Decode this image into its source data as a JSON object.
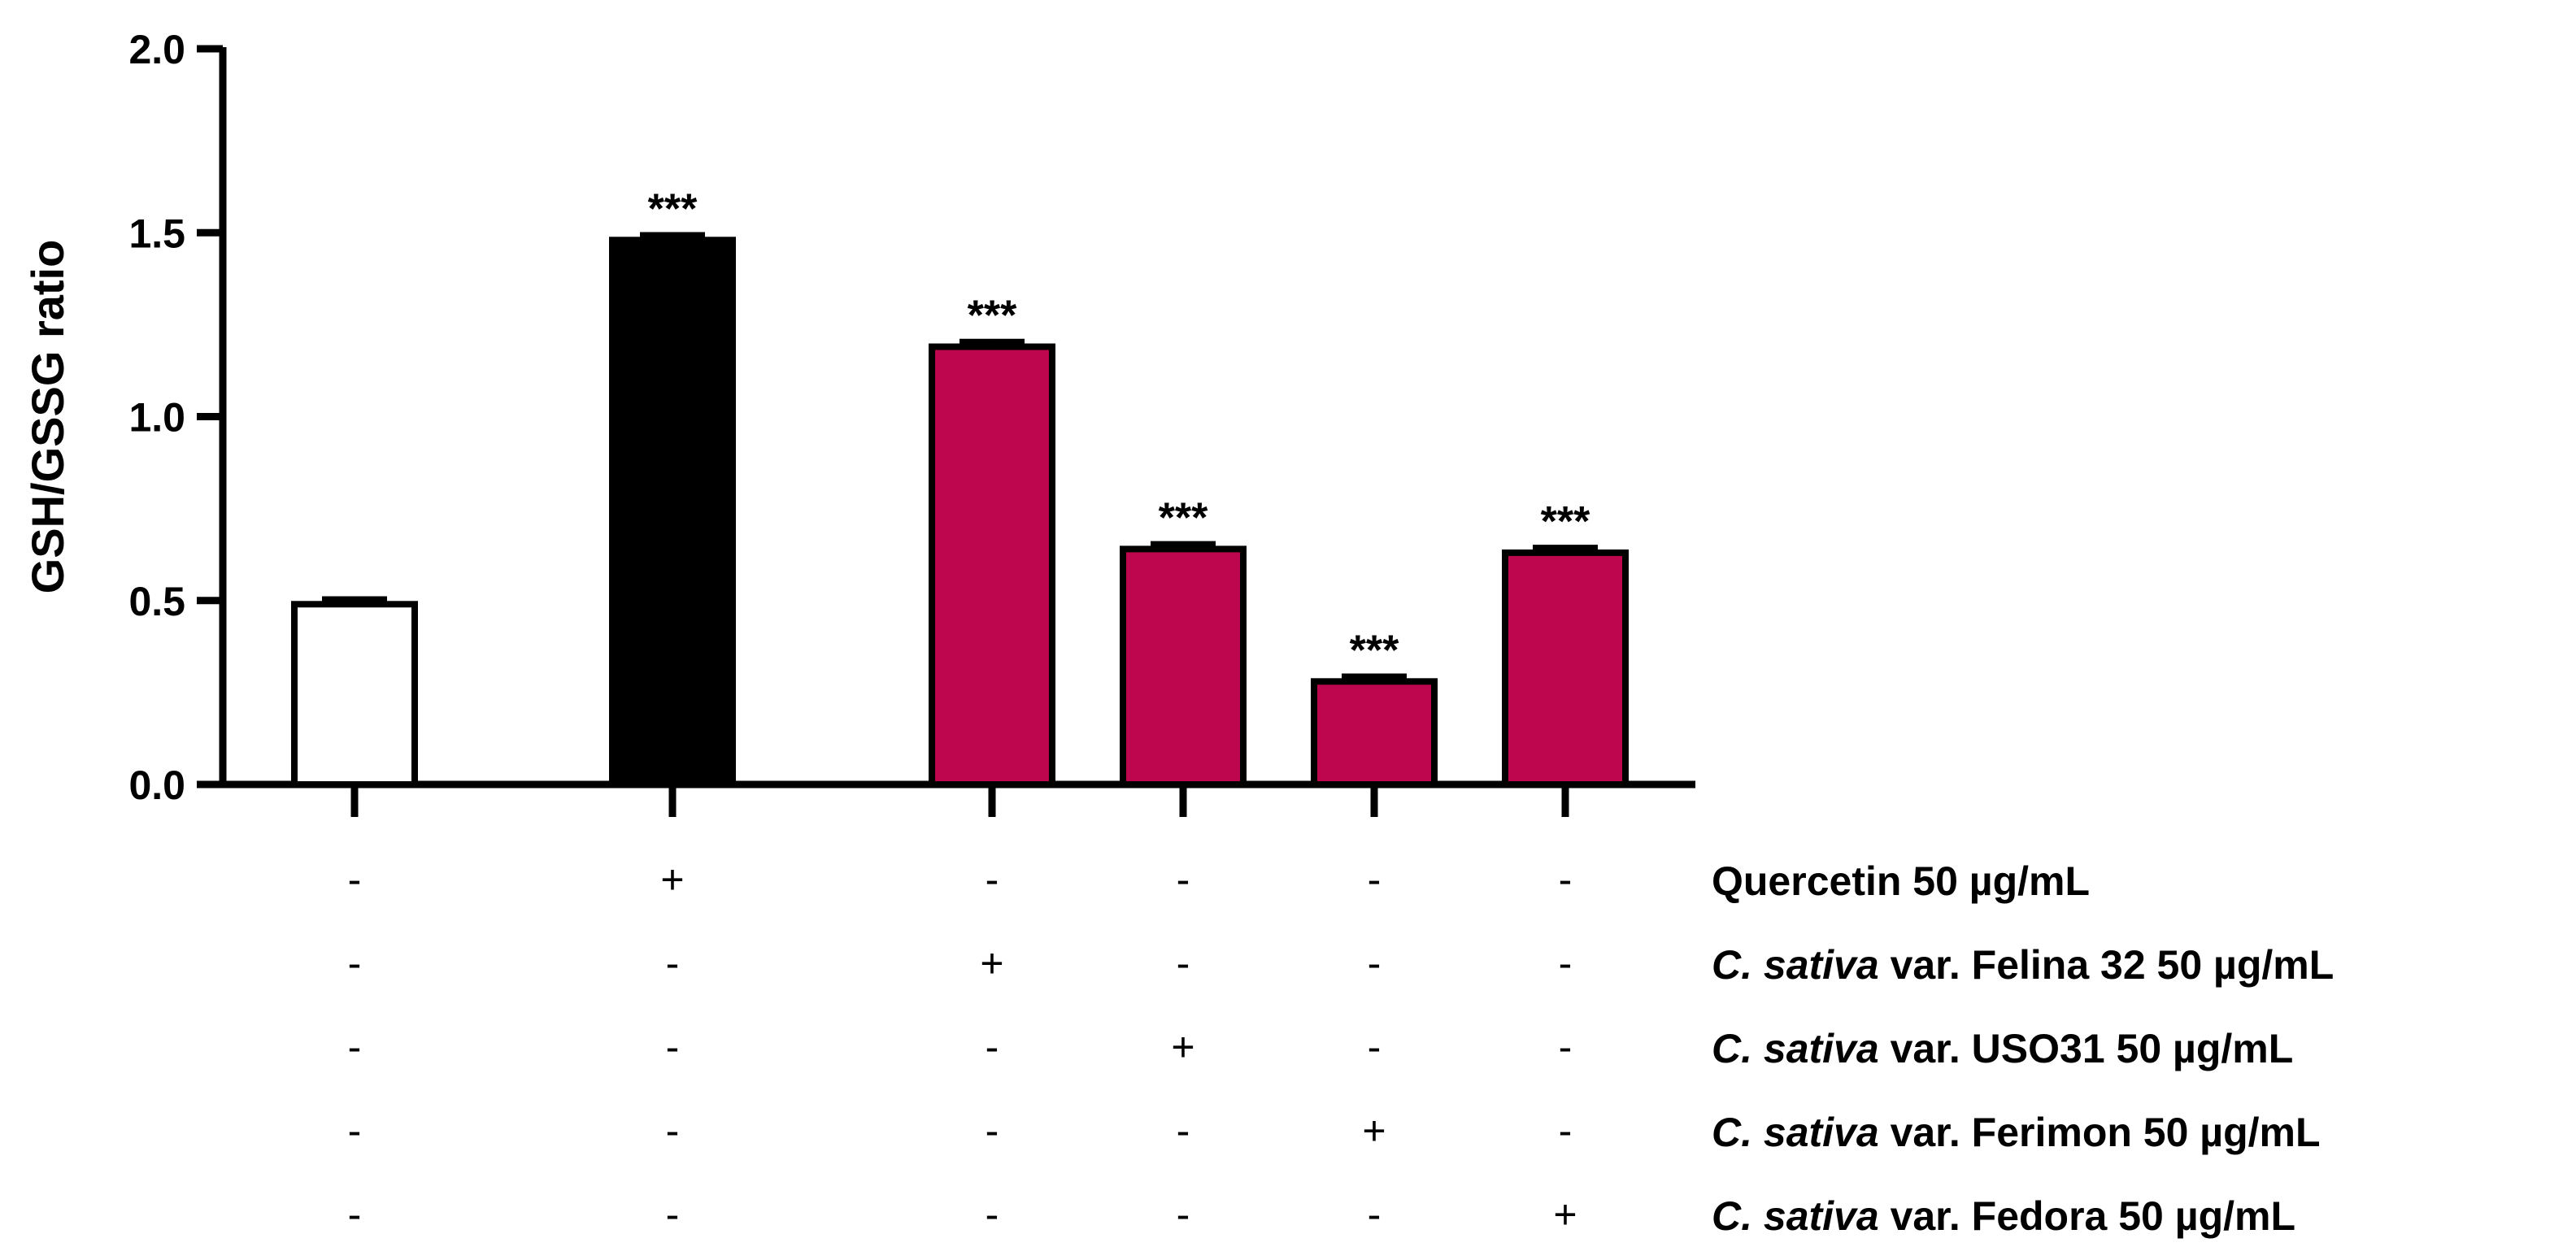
{
  "chart_data": {
    "type": "bar",
    "title": "",
    "xlabel": "",
    "ylabel": "GSH/GSSG ratio",
    "ylim": [
      0,
      2.0
    ],
    "yticks": [
      "0.0",
      "0.5",
      "1.0",
      "1.5",
      "2.0"
    ],
    "ytick_values": [
      0,
      0.5,
      1.0,
      1.5,
      2.0
    ],
    "bars": [
      {
        "name": "control",
        "value": 0.49,
        "error": 0.015,
        "color": "#ffffff",
        "significance": ""
      },
      {
        "name": "quercetin",
        "value": 1.48,
        "error": 0.015,
        "color": "#000000",
        "significance": "***"
      },
      {
        "name": "felina-32",
        "value": 1.19,
        "error": 0.015,
        "color": "#bd064d",
        "significance": "***"
      },
      {
        "name": "uso31",
        "value": 0.64,
        "error": 0.015,
        "color": "#bd064d",
        "significance": "***"
      },
      {
        "name": "ferimon",
        "value": 0.28,
        "error": 0.015,
        "color": "#bd064d",
        "significance": "***"
      },
      {
        "name": "fedora",
        "value": 0.63,
        "error": 0.015,
        "color": "#bd064d",
        "significance": "***"
      }
    ],
    "treatments": [
      {
        "italic": "",
        "label": "Quercetin 50 µg/mL",
        "marks": [
          "-",
          "+",
          "-",
          "-",
          "-",
          "-"
        ]
      },
      {
        "italic": "C. sativa",
        "label": " var. Felina 32 50 µg/mL",
        "marks": [
          "-",
          "-",
          "+",
          "-",
          "-",
          "-"
        ]
      },
      {
        "italic": "C. sativa",
        "label": " var. USO31 50 µg/mL",
        "marks": [
          "-",
          "-",
          "-",
          "+",
          "-",
          "-"
        ]
      },
      {
        "italic": "C. sativa",
        "label": " var. Ferimon 50 µg/mL",
        "marks": [
          "-",
          "-",
          "-",
          "-",
          "+",
          "-"
        ]
      },
      {
        "italic": "C. sativa",
        "label": " var. Fedora 50 µg/mL",
        "marks": [
          "-",
          "-",
          "-",
          "-",
          "-",
          "+"
        ]
      }
    ]
  }
}
